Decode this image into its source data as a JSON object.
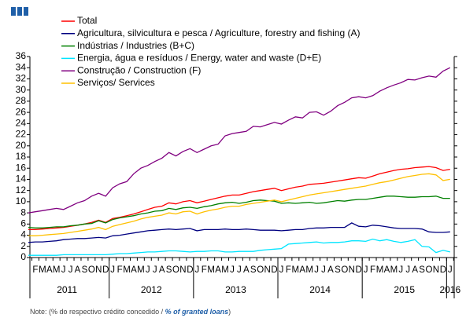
{
  "chart_data": {
    "type": "line",
    "categories": [
      null,
      "F",
      "M",
      "A",
      "M",
      "J",
      "J",
      "A",
      "S",
      "O",
      "N",
      "D",
      "J",
      "F",
      "M",
      "A",
      "M",
      "J",
      "J",
      "A",
      "S",
      "O",
      "N",
      "D",
      "J",
      "F",
      "M",
      "A",
      "M",
      "J",
      "J",
      "A",
      "S",
      "O",
      "N",
      "D",
      "J",
      "F",
      "M",
      "A",
      "M",
      "J",
      "J",
      "A",
      "S",
      "O",
      "N",
      "D",
      "J",
      "F",
      "M",
      "A",
      "M",
      "J",
      "J",
      "A",
      "S",
      "O",
      "N",
      "D",
      "J"
    ],
    "x_groups": [
      "2011",
      "2012",
      "2013",
      "2014",
      "2015",
      "2016"
    ],
    "ylim": [
      0,
      36
    ],
    "yticks": [
      0,
      2,
      4,
      6,
      8,
      10,
      12,
      14,
      16,
      18,
      20,
      22,
      24,
      26,
      28,
      30,
      32,
      34,
      36
    ],
    "series": [
      {
        "name": "Total",
        "color": "#ff0000",
        "values": [
          5.0,
          5.0,
          5.1,
          5.2,
          5.3,
          5.4,
          5.6,
          5.8,
          6.0,
          6.3,
          6.7,
          6.3,
          7.0,
          7.2,
          7.5,
          7.8,
          8.2,
          8.6,
          9.0,
          9.2,
          9.8,
          9.6,
          10.0,
          10.2,
          9.8,
          10.1,
          10.4,
          10.7,
          11.0,
          11.2,
          11.2,
          11.5,
          11.8,
          12.0,
          12.2,
          12.4,
          12.0,
          12.3,
          12.6,
          12.8,
          13.1,
          13.2,
          13.3,
          13.5,
          13.7,
          13.9,
          14.1,
          14.3,
          14.2,
          14.6,
          15.0,
          15.3,
          15.6,
          15.8,
          15.9,
          16.1,
          16.2,
          16.3,
          16.1,
          15.6,
          15.8
        ]
      },
      {
        "name": "Agricultura, silvicultura e pesca / Agriculture, forestry and fishing (A)",
        "color": "#000080",
        "values": [
          2.7,
          2.8,
          2.8,
          2.9,
          3.0,
          3.2,
          3.3,
          3.4,
          3.4,
          3.5,
          3.6,
          3.5,
          3.9,
          4.0,
          4.2,
          4.4,
          4.6,
          4.8,
          4.9,
          5.0,
          5.1,
          5.0,
          5.1,
          5.2,
          4.8,
          5.0,
          5.0,
          5.0,
          5.1,
          5.0,
          5.0,
          5.1,
          5.0,
          4.9,
          4.9,
          4.9,
          4.8,
          4.9,
          5.0,
          5.0,
          5.2,
          5.3,
          5.3,
          5.4,
          5.4,
          5.4,
          6.2,
          5.6,
          5.5,
          5.8,
          5.7,
          5.5,
          5.3,
          5.2,
          5.2,
          5.2,
          5.1,
          4.6,
          4.5,
          4.5,
          4.6
        ]
      },
      {
        "name": "Indústrias / Industries (B+C)",
        "color": "#008000",
        "values": [
          5.4,
          5.3,
          5.3,
          5.4,
          5.5,
          5.5,
          5.7,
          5.8,
          6.0,
          6.1,
          6.6,
          6.2,
          6.8,
          7.1,
          7.3,
          7.5,
          7.8,
          8.0,
          8.3,
          8.4,
          8.8,
          8.6,
          8.9,
          9.0,
          8.8,
          9.1,
          9.3,
          9.6,
          9.8,
          9.9,
          9.7,
          9.9,
          10.2,
          10.3,
          10.2,
          10.1,
          9.7,
          9.8,
          9.7,
          9.8,
          9.9,
          9.7,
          9.8,
          10.0,
          10.2,
          10.1,
          10.3,
          10.4,
          10.4,
          10.6,
          10.8,
          11.0,
          11.0,
          10.9,
          10.8,
          10.8,
          10.9,
          10.9,
          11.0,
          10.6,
          10.6
        ]
      },
      {
        "name": "Energia, água e resíduos / Energy, water and waste (D+E)",
        "color": "#00e5ff",
        "values": [
          0.4,
          0.4,
          0.4,
          0.4,
          0.4,
          0.5,
          0.5,
          0.5,
          0.5,
          0.5,
          0.5,
          0.5,
          0.6,
          0.7,
          0.7,
          0.8,
          0.9,
          1.0,
          1.0,
          1.1,
          1.2,
          1.2,
          1.1,
          1.0,
          1.1,
          1.1,
          1.2,
          1.2,
          1.0,
          1.0,
          1.1,
          1.1,
          1.1,
          1.3,
          1.4,
          1.5,
          1.6,
          2.4,
          2.5,
          2.6,
          2.7,
          2.8,
          2.6,
          2.7,
          2.7,
          2.8,
          3.0,
          3.0,
          2.9,
          3.3,
          3.0,
          3.2,
          2.9,
          2.7,
          2.9,
          3.2,
          2.0,
          1.9,
          0.9,
          1.3,
          1.0
        ]
      },
      {
        "name": "Construção / Construction  (F)",
        "color": "#800080",
        "values": [
          8.0,
          8.2,
          8.4,
          8.6,
          8.8,
          8.6,
          9.2,
          9.8,
          10.2,
          11.0,
          11.5,
          11.0,
          12.5,
          13.2,
          13.6,
          15.0,
          16.0,
          16.5,
          17.2,
          17.8,
          18.8,
          18.2,
          19.0,
          19.5,
          18.8,
          19.4,
          20.0,
          20.3,
          21.8,
          22.2,
          22.4,
          22.6,
          23.5,
          23.4,
          23.8,
          24.2,
          23.9,
          24.6,
          25.2,
          25.0,
          26.0,
          26.1,
          25.5,
          26.2,
          27.2,
          27.8,
          28.6,
          28.8,
          28.6,
          29.0,
          29.8,
          30.4,
          30.9,
          31.3,
          31.9,
          31.8,
          32.2,
          32.5,
          32.3,
          33.4,
          34.0
        ]
      },
      {
        "name": "Serviços/ Services",
        "color": "#ffc000",
        "values": [
          3.9,
          3.9,
          4.0,
          4.1,
          4.2,
          4.3,
          4.5,
          4.7,
          4.9,
          5.1,
          5.4,
          5.0,
          5.6,
          5.9,
          6.2,
          6.5,
          6.9,
          7.2,
          7.4,
          7.6,
          8.0,
          7.8,
          8.2,
          8.3,
          7.8,
          8.2,
          8.5,
          8.7,
          9.0,
          9.2,
          9.2,
          9.5,
          9.7,
          9.9,
          10.1,
          10.3,
          10.0,
          10.3,
          10.6,
          10.9,
          11.2,
          11.4,
          11.6,
          11.8,
          12.0,
          12.2,
          12.4,
          12.6,
          12.8,
          13.1,
          13.4,
          13.6,
          13.9,
          14.2,
          14.5,
          14.7,
          14.9,
          15.0,
          14.8,
          13.8,
          14.0
        ]
      }
    ],
    "note": "Note: (% do respectivo crédito concedido / ",
    "note_emphasis": "% of granted loans",
    "note_end": ")"
  }
}
